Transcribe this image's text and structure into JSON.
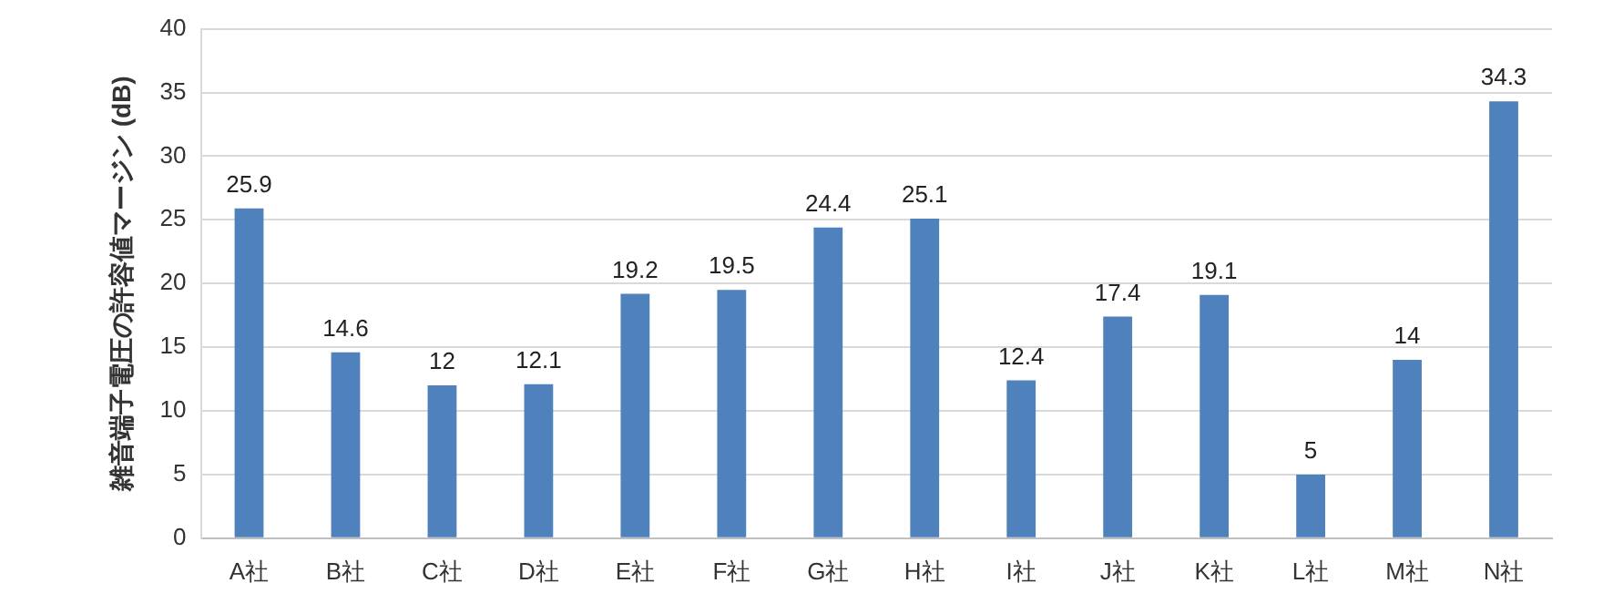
{
  "chart_data": {
    "type": "bar",
    "ylabel": "雑音端子電圧の許容値マージン (dB)",
    "categories": [
      "A社",
      "B社",
      "C社",
      "D社",
      "E社",
      "F社",
      "G社",
      "H社",
      "I社",
      "J社",
      "K社",
      "L社",
      "M社",
      "N社"
    ],
    "values": [
      25.9,
      14.6,
      12,
      12.1,
      19.2,
      19.5,
      24.4,
      25.1,
      12.4,
      17.4,
      19.1,
      5,
      14,
      34.3
    ],
    "color": "#4f81bd",
    "ylim": [
      0,
      40
    ],
    "yticks": [
      0,
      5,
      10,
      15,
      20,
      25,
      30,
      35,
      40
    ],
    "grid": "y",
    "data_labels": true
  }
}
